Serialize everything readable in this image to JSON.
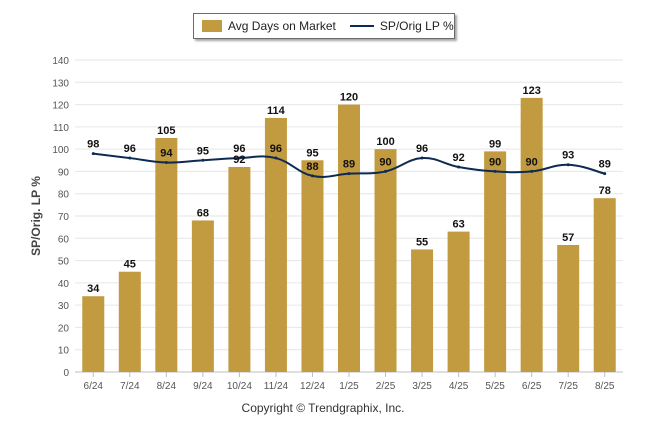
{
  "chart_data": {
    "type": "bar",
    "categories": [
      "6/24",
      "7/24",
      "8/24",
      "9/24",
      "10/24",
      "11/24",
      "12/24",
      "1/25",
      "2/25",
      "3/25",
      "4/25",
      "5/25",
      "6/25",
      "7/25",
      "8/25"
    ],
    "series": [
      {
        "name": "Avg Days on Market",
        "type": "bar",
        "color": "#c29a3f",
        "values": [
          34,
          45,
          105,
          68,
          92,
          114,
          95,
          120,
          100,
          55,
          63,
          99,
          123,
          57,
          78
        ]
      },
      {
        "name": "SP/Orig LP %",
        "type": "line",
        "color": "#0d2b52",
        "values": [
          98,
          96,
          94,
          95,
          96,
          96,
          88,
          89,
          90,
          96,
          92,
          90,
          90,
          93,
          89
        ]
      }
    ],
    "ylabel": "SP/Orig. LP %",
    "ylim": [
      0,
      140
    ],
    "yticks": [
      0,
      10,
      20,
      30,
      40,
      50,
      60,
      70,
      80,
      90,
      100,
      110,
      120,
      130,
      140
    ],
    "grid": true,
    "legend_position": "top-center"
  },
  "footer": {
    "copyright": "Copyright © Trendgraphix, Inc."
  }
}
